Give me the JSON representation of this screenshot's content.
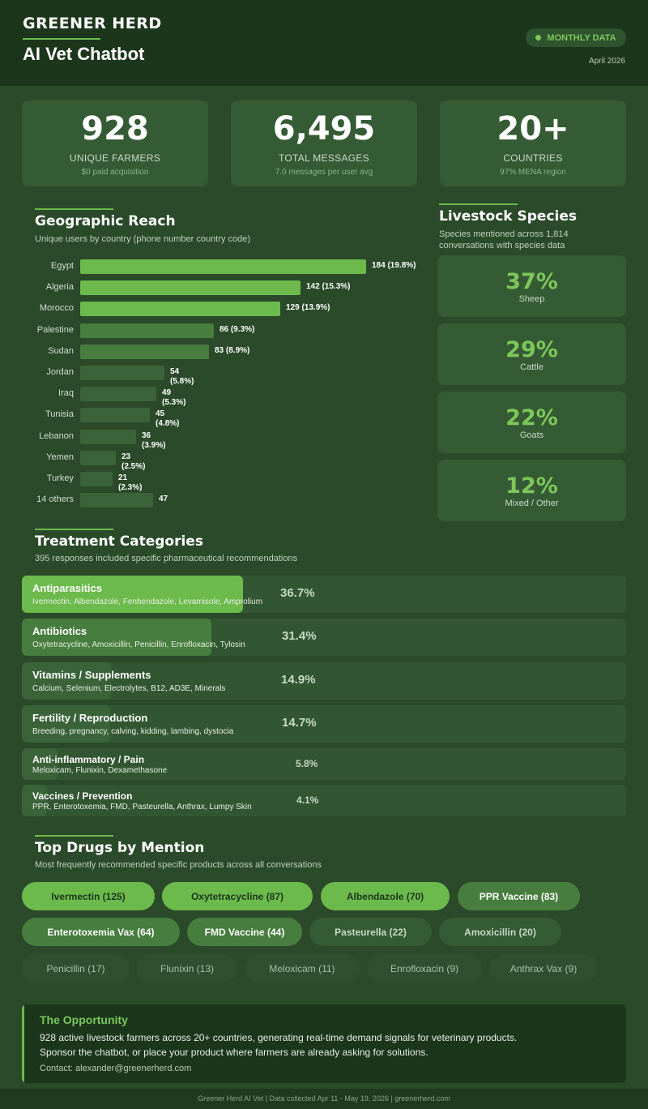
{
  "header": {
    "brand": "GREENER HERD",
    "title": "AI Vet Chatbot",
    "badge": "MONTHLY DATA",
    "date": "April 2026"
  },
  "stats": [
    {
      "value": "928",
      "label": "UNIQUE FARMERS",
      "sub": "$0 paid acquisition"
    },
    {
      "value": "6,495",
      "label": "TOTAL MESSAGES",
      "sub": "7.0 messages per user avg"
    },
    {
      "value": "20+",
      "label": "COUNTRIES",
      "sub": "97% MENA region"
    }
  ],
  "geo": {
    "title": "Geographic Reach",
    "subtitle": "Unique users by country (phone number country code)"
  },
  "species": {
    "title": "Livestock Species",
    "subtitle": "Species mentioned across 1,814 conversations with species data",
    "items": [
      {
        "pct": "37%",
        "name": "Sheep"
      },
      {
        "pct": "29%",
        "name": "Cattle"
      },
      {
        "pct": "22%",
        "name": "Goats"
      },
      {
        "pct": "12%",
        "name": "Mixed / Other"
      }
    ]
  },
  "treatments": {
    "title": "Treatment Categories",
    "subtitle": "395 responses included specific pharmaceutical recommendations",
    "items": [
      {
        "name": "Antiparasitics",
        "desc": "Ivermectin, Albendazole, Fenbendazole, Levamisole, Amprolium",
        "pct": "36.7%",
        "value": 36.7
      },
      {
        "name": "Antibiotics",
        "desc": "Oxytetracycline, Amoxicillin, Penicillin, Enrofloxacin, Tylosin",
        "pct": "31.4%",
        "value": 31.4
      },
      {
        "name": "Vitamins / Supplements",
        "desc": "Calcium, Selenium, Electrolytes, B12, AD3E, Minerals",
        "pct": "14.9%",
        "value": 14.9
      },
      {
        "name": "Fertility / Reproduction",
        "desc": "Breeding, pregnancy, calving, kidding, lambing, dystocia",
        "pct": "14.7%",
        "value": 14.7
      },
      {
        "name": "Anti-inflammatory / Pain",
        "desc": "Meloxicam, Flunixin, Dexamethasone",
        "pct": "5.8%",
        "value": 5.8
      },
      {
        "name": "Vaccines / Prevention",
        "desc": "PPR, Enterotoxemia, FMD, Pasteurella, Anthrax, Lumpy Skin",
        "pct": "4.1%",
        "value": 4.1
      }
    ]
  },
  "drugs": {
    "title": "Top Drugs by Mention",
    "subtitle": "Most frequently recommended specific products across all conversations",
    "items": [
      {
        "label": "Ivermectin (125)",
        "tier": 1
      },
      {
        "label": "Oxytetracycline (87)",
        "tier": 1
      },
      {
        "label": "Albendazole (70)",
        "tier": 1
      },
      {
        "label": "PPR Vaccine (83)",
        "tier": 2
      },
      {
        "label": "Enterotoxemia Vax (64)",
        "tier": 2
      },
      {
        "label": "FMD Vaccine (44)",
        "tier": 2
      },
      {
        "label": "Pasteurella (22)",
        "tier": 3
      },
      {
        "label": "Amoxicillin (20)",
        "tier": 3
      },
      {
        "label": "Penicillin (17)",
        "tier": 4
      },
      {
        "label": "Flunixin (13)",
        "tier": 4
      },
      {
        "label": "Meloxicam (11)",
        "tier": 4
      },
      {
        "label": "Enrofloxacin (9)",
        "tier": 4
      },
      {
        "label": "Anthrax Vax (9)",
        "tier": 4
      }
    ]
  },
  "opportunity": {
    "title": "The Opportunity",
    "line1": "928 active livestock farmers across 20+ countries, generating real-time demand signals for veterinary products.",
    "line2": "Sponsor the chatbot, or place your product where farmers are already asking for solutions.",
    "contact": "Contact: alexander@greenerherd.com"
  },
  "footer": "Greener Herd AI Vet | Data collected Apr 11 - May 19, 2026 | greenerherd.com",
  "colors": {
    "accent": "#6dba4c",
    "bar_strong": "#6dba4c",
    "bar_mid": "#477d3e",
    "bar_dim": "#3a633a"
  },
  "chart_data": {
    "type": "bar",
    "orientation": "horizontal",
    "categories": [
      "Egypt",
      "Algeria",
      "Morocco",
      "Palestine",
      "Sudan",
      "Jordan",
      "Iraq",
      "Tunisia",
      "Lebanon",
      "Yemen",
      "Turkey",
      "14 others"
    ],
    "values": [
      184,
      142,
      129,
      86,
      83,
      54,
      49,
      45,
      36,
      23,
      21,
      47
    ],
    "labels": [
      "184 (19.8%)",
      "142 (15.3%)",
      "129 (13.9%)",
      "86 (9.3%)",
      "83 (8.9%)",
      "54 (5.8%)",
      "49 (5.3%)",
      "45 (4.8%)",
      "36 (3.9%)",
      "23 (2.5%)",
      "21 (2.3%)",
      "47"
    ],
    "title": "Geographic Reach",
    "xlabel": "",
    "ylabel": "",
    "xlim": [
      0,
      184
    ],
    "grid": false
  }
}
